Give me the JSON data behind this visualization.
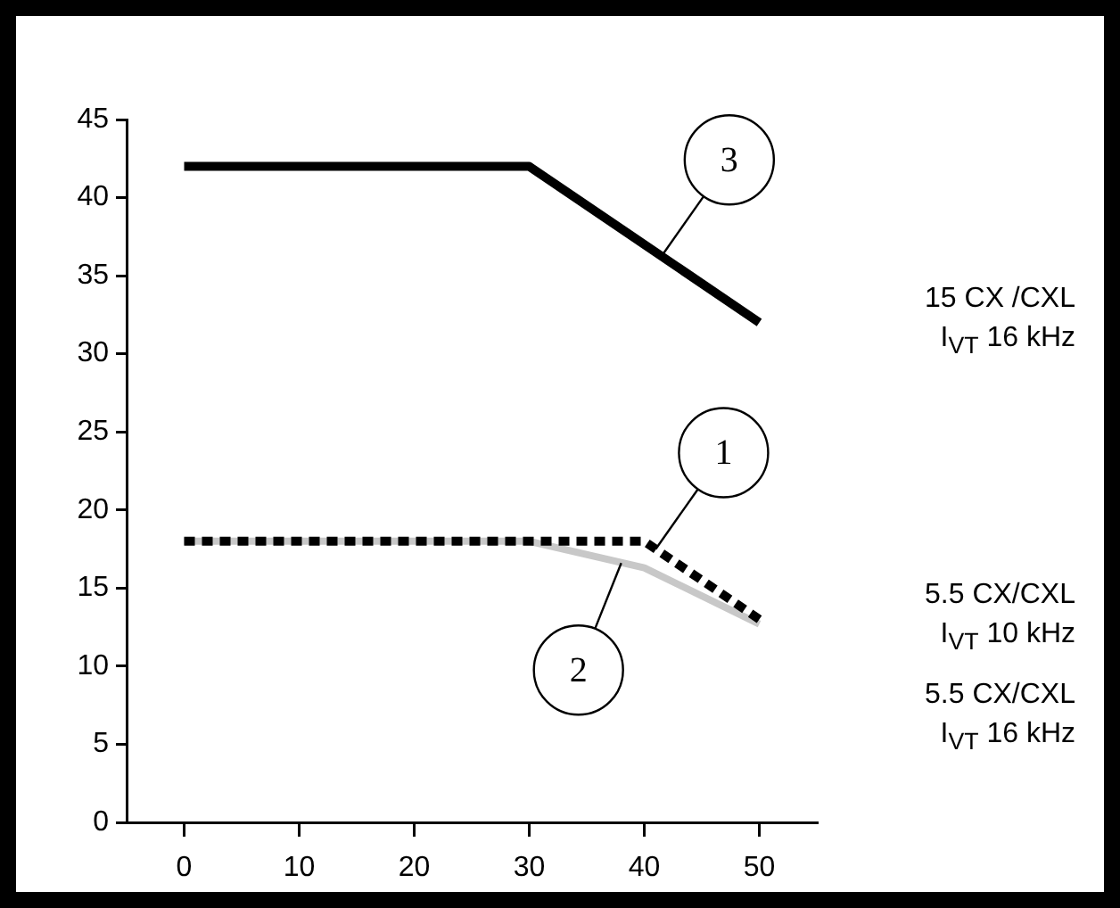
{
  "chart_data": {
    "type": "line",
    "xlim": [
      -5,
      55
    ],
    "xticks": [
      0,
      10,
      20,
      30,
      40,
      50
    ],
    "ylim": [
      0,
      45
    ],
    "yticks": [
      0,
      5,
      10,
      15,
      20,
      25,
      30,
      35,
      40,
      45
    ],
    "grid": false,
    "legend": false,
    "marker": "none",
    "series": [
      {
        "name": "15 CX /CXL\nI$_{VT}$ 16 kHz",
        "color": "#000000",
        "line_style": "solid",
        "x": [
          0,
          30,
          50
        ],
        "values": [
          42,
          42,
          32
        ]
      },
      {
        "name": "5.5 CX/CXL\nI$_{VT}$ 10 kHz",
        "color": "#000000",
        "line_style": "dotted",
        "x": [
          0,
          40,
          50
        ],
        "values": [
          18,
          18,
          13
        ]
      },
      {
        "name": "5.5 CX/CXL\nI$_{VT}$ 16 kHz",
        "color": "#c8c8c8",
        "line_style": "solid",
        "x": [
          0,
          30,
          40,
          50
        ],
        "values": [
          18,
          18,
          16.3,
          12.7
        ]
      }
    ],
    "annotations": [
      {
        "text": "3",
        "x": 41.5,
        "y": 36.25
      },
      {
        "text": "1",
        "x": 41,
        "y": 17.5
      },
      {
        "text": "2",
        "x": 38,
        "y": 16.6
      }
    ]
  }
}
